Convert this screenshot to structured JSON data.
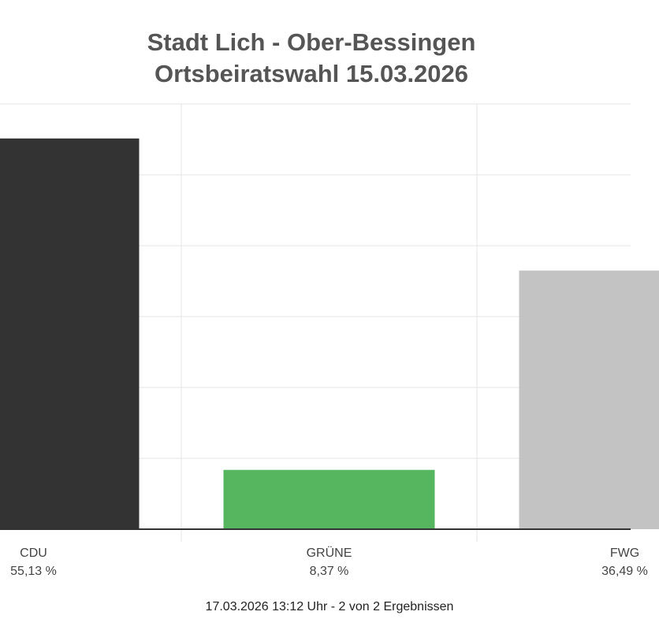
{
  "title": [
    "Stadt Lich - Ober-Bessingen",
    "Ortsbeiratswahl 15.03.2026"
  ],
  "footer": "17.03.2026 13:12 Uhr - 2 von 2 Ergebnissen",
  "colors": {
    "CDU": "#333333",
    "GRÜNE": "#56b65f",
    "FWG": "#c3c3c3",
    "grid": "#e6e6e6",
    "axis": "#333333",
    "label": "#444444",
    "title": "#555555"
  },
  "chart_data": {
    "type": "bar",
    "categories": [
      "CDU",
      "GRÜNE",
      "FWG"
    ],
    "value_labels": [
      "55,13 %",
      "8,37 %",
      "36,49 %"
    ],
    "values": [
      55.13,
      8.37,
      36.49
    ],
    "title": "Stadt Lich - Ober-Bessingen Ortsbeiratswahl 15.03.2026",
    "ylim": [
      0,
      60
    ],
    "grid": true,
    "legend": "none"
  }
}
